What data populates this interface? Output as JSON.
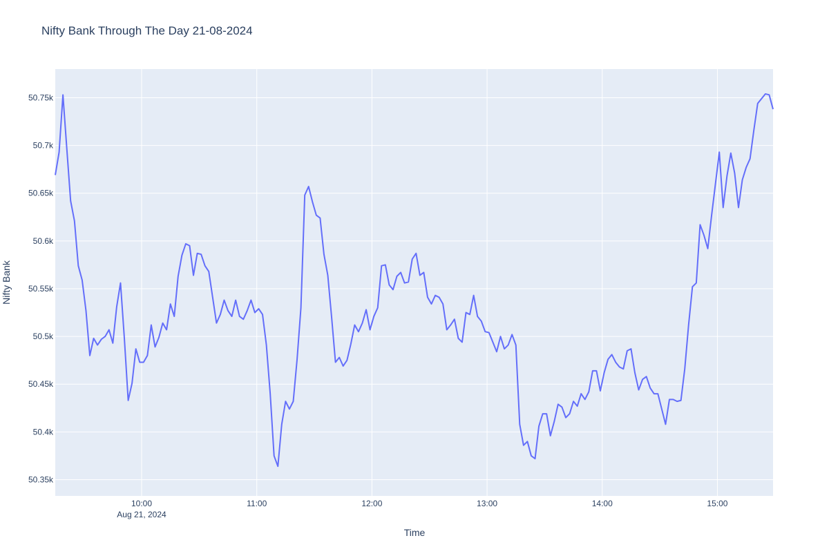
{
  "chart_data": {
    "type": "line",
    "title": "Nifty Bank Through The Day 21-08-2024",
    "x_label": "Time",
    "y_label": "Nifty Bank",
    "color": "#636efa",
    "grid": true,
    "x": [
      "2024-08-21 09:15",
      "2024-08-21 09:17",
      "2024-08-21 09:19",
      "2024-08-21 09:21",
      "2024-08-21 09:23",
      "2024-08-21 09:25",
      "2024-08-21 09:27",
      "2024-08-21 09:29",
      "2024-08-21 09:31",
      "2024-08-21 09:33",
      "2024-08-21 09:35",
      "2024-08-21 09:37",
      "2024-08-21 09:39",
      "2024-08-21 09:41",
      "2024-08-21 09:43",
      "2024-08-21 09:45",
      "2024-08-21 09:47",
      "2024-08-21 09:49",
      "2024-08-21 09:51",
      "2024-08-21 09:53",
      "2024-08-21 09:55",
      "2024-08-21 09:57",
      "2024-08-21 09:59",
      "2024-08-21 10:01",
      "2024-08-21 10:03",
      "2024-08-21 10:05",
      "2024-08-21 10:07",
      "2024-08-21 10:09",
      "2024-08-21 10:11",
      "2024-08-21 10:13",
      "2024-08-21 10:15",
      "2024-08-21 10:17",
      "2024-08-21 10:19",
      "2024-08-21 10:21",
      "2024-08-21 10:23",
      "2024-08-21 10:25",
      "2024-08-21 10:27",
      "2024-08-21 10:29",
      "2024-08-21 10:31",
      "2024-08-21 10:33",
      "2024-08-21 10:35",
      "2024-08-21 10:37",
      "2024-08-21 10:39",
      "2024-08-21 10:41",
      "2024-08-21 10:43",
      "2024-08-21 10:45",
      "2024-08-21 10:47",
      "2024-08-21 10:49",
      "2024-08-21 10:51",
      "2024-08-21 10:53",
      "2024-08-21 10:55",
      "2024-08-21 10:57",
      "2024-08-21 10:59",
      "2024-08-21 11:01",
      "2024-08-21 11:03",
      "2024-08-21 11:05",
      "2024-08-21 11:07",
      "2024-08-21 11:09",
      "2024-08-21 11:11",
      "2024-08-21 11:13",
      "2024-08-21 11:15",
      "2024-08-21 11:17",
      "2024-08-21 11:19",
      "2024-08-21 11:21",
      "2024-08-21 11:23",
      "2024-08-21 11:25",
      "2024-08-21 11:27",
      "2024-08-21 11:29",
      "2024-08-21 11:31",
      "2024-08-21 11:33",
      "2024-08-21 11:35",
      "2024-08-21 11:37",
      "2024-08-21 11:39",
      "2024-08-21 11:41",
      "2024-08-21 11:43",
      "2024-08-21 11:45",
      "2024-08-21 11:47",
      "2024-08-21 11:49",
      "2024-08-21 11:51",
      "2024-08-21 11:53",
      "2024-08-21 11:55",
      "2024-08-21 11:57",
      "2024-08-21 11:59",
      "2024-08-21 12:01",
      "2024-08-21 12:03",
      "2024-08-21 12:05",
      "2024-08-21 12:07",
      "2024-08-21 12:09",
      "2024-08-21 12:11",
      "2024-08-21 12:13",
      "2024-08-21 12:15",
      "2024-08-21 12:17",
      "2024-08-21 12:19",
      "2024-08-21 12:21",
      "2024-08-21 12:23",
      "2024-08-21 12:25",
      "2024-08-21 12:27",
      "2024-08-21 12:29",
      "2024-08-21 12:31",
      "2024-08-21 12:33",
      "2024-08-21 12:35",
      "2024-08-21 12:37",
      "2024-08-21 12:39",
      "2024-08-21 12:41",
      "2024-08-21 12:43",
      "2024-08-21 12:45",
      "2024-08-21 12:47",
      "2024-08-21 12:49",
      "2024-08-21 12:51",
      "2024-08-21 12:53",
      "2024-08-21 12:55",
      "2024-08-21 12:57",
      "2024-08-21 12:59",
      "2024-08-21 13:01",
      "2024-08-21 13:03",
      "2024-08-21 13:05",
      "2024-08-21 13:07",
      "2024-08-21 13:09",
      "2024-08-21 13:11",
      "2024-08-21 13:13",
      "2024-08-21 13:15",
      "2024-08-21 13:17",
      "2024-08-21 13:19",
      "2024-08-21 13:21",
      "2024-08-21 13:23",
      "2024-08-21 13:25",
      "2024-08-21 13:27",
      "2024-08-21 13:29",
      "2024-08-21 13:31",
      "2024-08-21 13:33",
      "2024-08-21 13:35",
      "2024-08-21 13:37",
      "2024-08-21 13:39",
      "2024-08-21 13:41",
      "2024-08-21 13:43",
      "2024-08-21 13:45",
      "2024-08-21 13:47",
      "2024-08-21 13:49",
      "2024-08-21 13:51",
      "2024-08-21 13:53",
      "2024-08-21 13:55",
      "2024-08-21 13:57",
      "2024-08-21 13:59",
      "2024-08-21 14:01",
      "2024-08-21 14:03",
      "2024-08-21 14:05",
      "2024-08-21 14:07",
      "2024-08-21 14:09",
      "2024-08-21 14:11",
      "2024-08-21 14:13",
      "2024-08-21 14:15",
      "2024-08-21 14:17",
      "2024-08-21 14:19",
      "2024-08-21 14:21",
      "2024-08-21 14:23",
      "2024-08-21 14:25",
      "2024-08-21 14:27",
      "2024-08-21 14:29",
      "2024-08-21 14:31",
      "2024-08-21 14:33",
      "2024-08-21 14:35",
      "2024-08-21 14:37",
      "2024-08-21 14:39",
      "2024-08-21 14:41",
      "2024-08-21 14:43",
      "2024-08-21 14:45",
      "2024-08-21 14:47",
      "2024-08-21 14:49",
      "2024-08-21 14:51",
      "2024-08-21 14:53",
      "2024-08-21 14:55",
      "2024-08-21 14:57",
      "2024-08-21 14:59",
      "2024-08-21 15:01",
      "2024-08-21 15:03",
      "2024-08-21 15:05",
      "2024-08-21 15:07",
      "2024-08-21 15:09",
      "2024-08-21 15:11",
      "2024-08-21 15:13",
      "2024-08-21 15:15",
      "2024-08-21 15:17",
      "2024-08-21 15:19",
      "2024-08-21 15:21",
      "2024-08-21 15:23",
      "2024-08-21 15:25",
      "2024-08-21 15:27",
      "2024-08-21 15:29"
    ],
    "values": [
      50669,
      50693,
      50753,
      50697,
      50642,
      50621,
      50574,
      50559,
      50527,
      50480,
      50498,
      50491,
      50497,
      50500,
      50507,
      50493,
      50531,
      50556,
      50498,
      50433,
      50451,
      50487,
      50473,
      50473,
      50480,
      50512,
      50489,
      50499,
      50514,
      50507,
      50534,
      50521,
      50563,
      50585,
      50597,
      50595,
      50564,
      50587,
      50586,
      50574,
      50568,
      50541,
      50514,
      50523,
      50538,
      50527,
      50521,
      50538,
      50521,
      50518,
      50527,
      50538,
      50525,
      50529,
      50523,
      50491,
      50440,
      50375,
      50364,
      50408,
      50432,
      50424,
      50432,
      50476,
      50530,
      50648,
      50657,
      50641,
      50627,
      50624,
      50586,
      50564,
      50520,
      50473,
      50478,
      50469,
      50475,
      50492,
      50512,
      50505,
      50514,
      50528,
      50507,
      50521,
      50530,
      50574,
      50575,
      50554,
      50549,
      50563,
      50567,
      50556,
      50557,
      50581,
      50587,
      50564,
      50567,
      50541,
      50534,
      50543,
      50541,
      50534,
      50507,
      50512,
      50518,
      50498,
      50494,
      50525,
      50523,
      50543,
      50521,
      50516,
      50505,
      50504,
      50494,
      50484,
      50500,
      50487,
      50491,
      50502,
      50491,
      50408,
      50386,
      50390,
      50375,
      50372,
      50406,
      50419,
      50419,
      50396,
      50411,
      50429,
      50426,
      50415,
      50419,
      50432,
      50427,
      50440,
      50434,
      50442,
      50464,
      50464,
      50443,
      50462,
      50476,
      50481,
      50473,
      50468,
      50466,
      50485,
      50487,
      50462,
      50444,
      50455,
      50458,
      50446,
      50440,
      50440,
      50424,
      50408,
      50434,
      50434,
      50432,
      50433,
      50466,
      50512,
      50552,
      50556,
      50617,
      50606,
      50592,
      50627,
      50660,
      50693,
      50635,
      50668,
      50692,
      50671,
      50635,
      50664,
      50677,
      50686,
      50716,
      50744,
      50749,
      50754,
      50753,
      50738
    ],
    "xlim": [
      "2024-08-21 09:15",
      "2024-08-21 15:29"
    ],
    "xticks": [
      {
        "value": "2024-08-21 10:00",
        "label": "10:00"
      },
      {
        "value": "2024-08-21 11:00",
        "label": "11:00"
      },
      {
        "value": "2024-08-21 12:00",
        "label": "12:00"
      },
      {
        "value": "2024-08-21 13:00",
        "label": "13:00"
      },
      {
        "value": "2024-08-21 14:00",
        "label": "14:00"
      },
      {
        "value": "2024-08-21 15:00",
        "label": "15:00"
      }
    ],
    "x_date_label": "Aug 21, 2024",
    "ylim": [
      50333,
      50780
    ],
    "yticks": [
      {
        "value": 50350,
        "label": "50.35k"
      },
      {
        "value": 50400,
        "label": "50.4k"
      },
      {
        "value": 50450,
        "label": "50.45k"
      },
      {
        "value": 50500,
        "label": "50.5k"
      },
      {
        "value": 50550,
        "label": "50.55k"
      },
      {
        "value": 50600,
        "label": "50.6k"
      },
      {
        "value": 50650,
        "label": "50.65k"
      },
      {
        "value": 50700,
        "label": "50.7k"
      },
      {
        "value": 50750,
        "label": "50.75k"
      }
    ]
  }
}
